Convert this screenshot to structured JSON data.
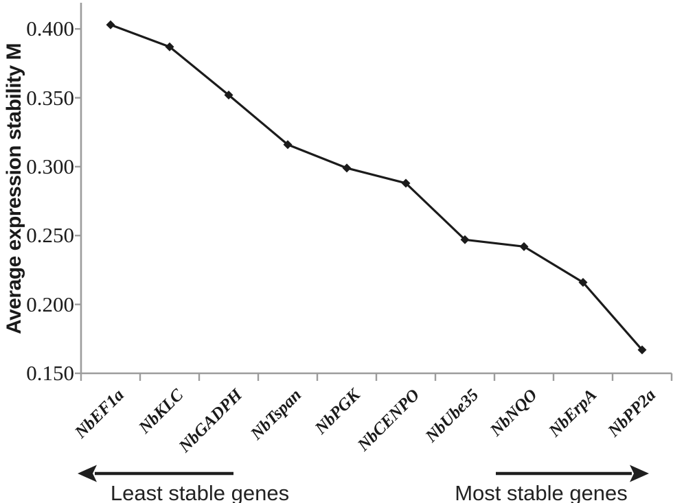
{
  "chart_data": {
    "type": "line",
    "title": "",
    "xlabel": "",
    "ylabel": "Average expression stability M",
    "categories": [
      "NbEF1a",
      "NbKLC",
      "NbGADPH",
      "NbTspan",
      "NbPGK",
      "NbCENPO",
      "NbUbe35",
      "NbNQO",
      "NbErpA",
      "NbPP2a"
    ],
    "values": [
      0.403,
      0.387,
      0.352,
      0.316,
      0.299,
      0.288,
      0.247,
      0.242,
      0.216,
      0.167
    ],
    "ylim": [
      0.15,
      0.419
    ],
    "yticks": [
      0.15,
      0.2,
      0.25,
      0.3,
      0.35,
      0.4
    ],
    "ytick_labels": [
      "0.150",
      "0.200",
      "0.250",
      "0.300",
      "0.350",
      "0.400"
    ],
    "grid": false,
    "legend": false,
    "marker": "diamond",
    "line_color": "#1b1b1b",
    "axis_color": "#9c9c9c",
    "text_color": "#1a1a1a"
  },
  "annotations": {
    "left_arrow_label": "Least stable genes",
    "right_arrow_label": "Most stable genes"
  }
}
